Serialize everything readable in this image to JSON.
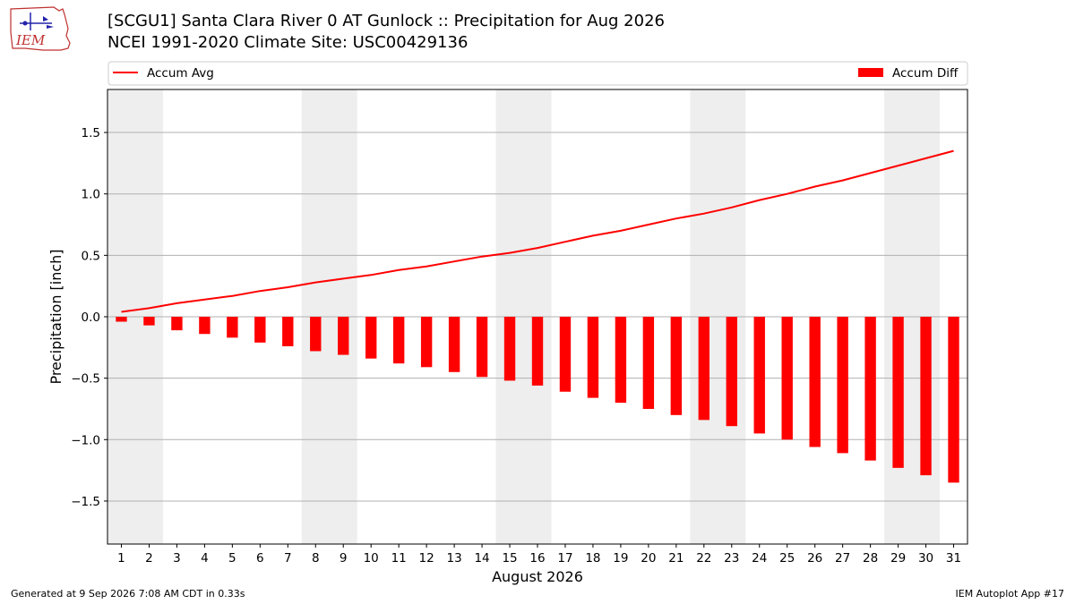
{
  "header": {
    "title_line1": "[SCGU1] Santa Clara River 0 AT Gunlock :: Precipitation for Aug 2026",
    "title_line2": "NCEI 1991-2020 Climate Site: USC00429136",
    "logo_text": "IEM"
  },
  "footer": {
    "left": "Generated at 9 Sep 2026 7:08 AM CDT in 0.33s",
    "right": "IEM Autoplot App #17"
  },
  "colors": {
    "accum_avg": "#ff0000",
    "accum_diff": "#ff0000",
    "weekend_shade": "#eeeeee",
    "grid": "#b0b0b0"
  },
  "chart_data": {
    "type": "bar",
    "title": "[SCGU1] Santa Clara River 0 AT Gunlock :: Precipitation for Aug 2026",
    "subtitle": "NCEI 1991-2020 Climate Site: USC00429136",
    "xlabel": "August 2026",
    "ylabel": "Precipitation [inch]",
    "ylim": [
      -1.85,
      1.85
    ],
    "yticks": [
      -1.5,
      -1.0,
      -0.5,
      0.0,
      0.5,
      1.0,
      1.5
    ],
    "ytick_labels": [
      "−1.5",
      "−1.0",
      "−0.5",
      "0.0",
      "0.5",
      "1.0",
      "1.5"
    ],
    "grid": true,
    "legend_placement": "top",
    "x": [
      "1",
      "2",
      "3",
      "4",
      "5",
      "6",
      "7",
      "8",
      "9",
      "10",
      "11",
      "12",
      "13",
      "14",
      "15",
      "16",
      "17",
      "18",
      "19",
      "20",
      "21",
      "22",
      "23",
      "24",
      "25",
      "26",
      "27",
      "28",
      "29",
      "30",
      "31"
    ],
    "weekend_shading": [
      [
        1,
        2
      ],
      [
        8,
        9
      ],
      [
        15,
        16
      ],
      [
        22,
        23
      ],
      [
        29,
        30
      ]
    ],
    "series": [
      {
        "name": "Accum Avg",
        "type": "line",
        "values": [
          0.04,
          0.07,
          0.11,
          0.14,
          0.17,
          0.21,
          0.24,
          0.28,
          0.31,
          0.34,
          0.38,
          0.41,
          0.45,
          0.49,
          0.52,
          0.56,
          0.61,
          0.66,
          0.7,
          0.75,
          0.8,
          0.84,
          0.89,
          0.95,
          1.0,
          1.06,
          1.11,
          1.17,
          1.23,
          1.29,
          1.35
        ]
      },
      {
        "name": "Accum Diff",
        "type": "bar",
        "values": [
          -0.04,
          -0.07,
          -0.11,
          -0.14,
          -0.17,
          -0.21,
          -0.24,
          -0.28,
          -0.31,
          -0.34,
          -0.38,
          -0.41,
          -0.45,
          -0.49,
          -0.52,
          -0.56,
          -0.61,
          -0.66,
          -0.7,
          -0.75,
          -0.8,
          -0.84,
          -0.89,
          -0.95,
          -1.0,
          -1.06,
          -1.11,
          -1.17,
          -1.23,
          -1.29,
          -1.35
        ]
      }
    ]
  }
}
